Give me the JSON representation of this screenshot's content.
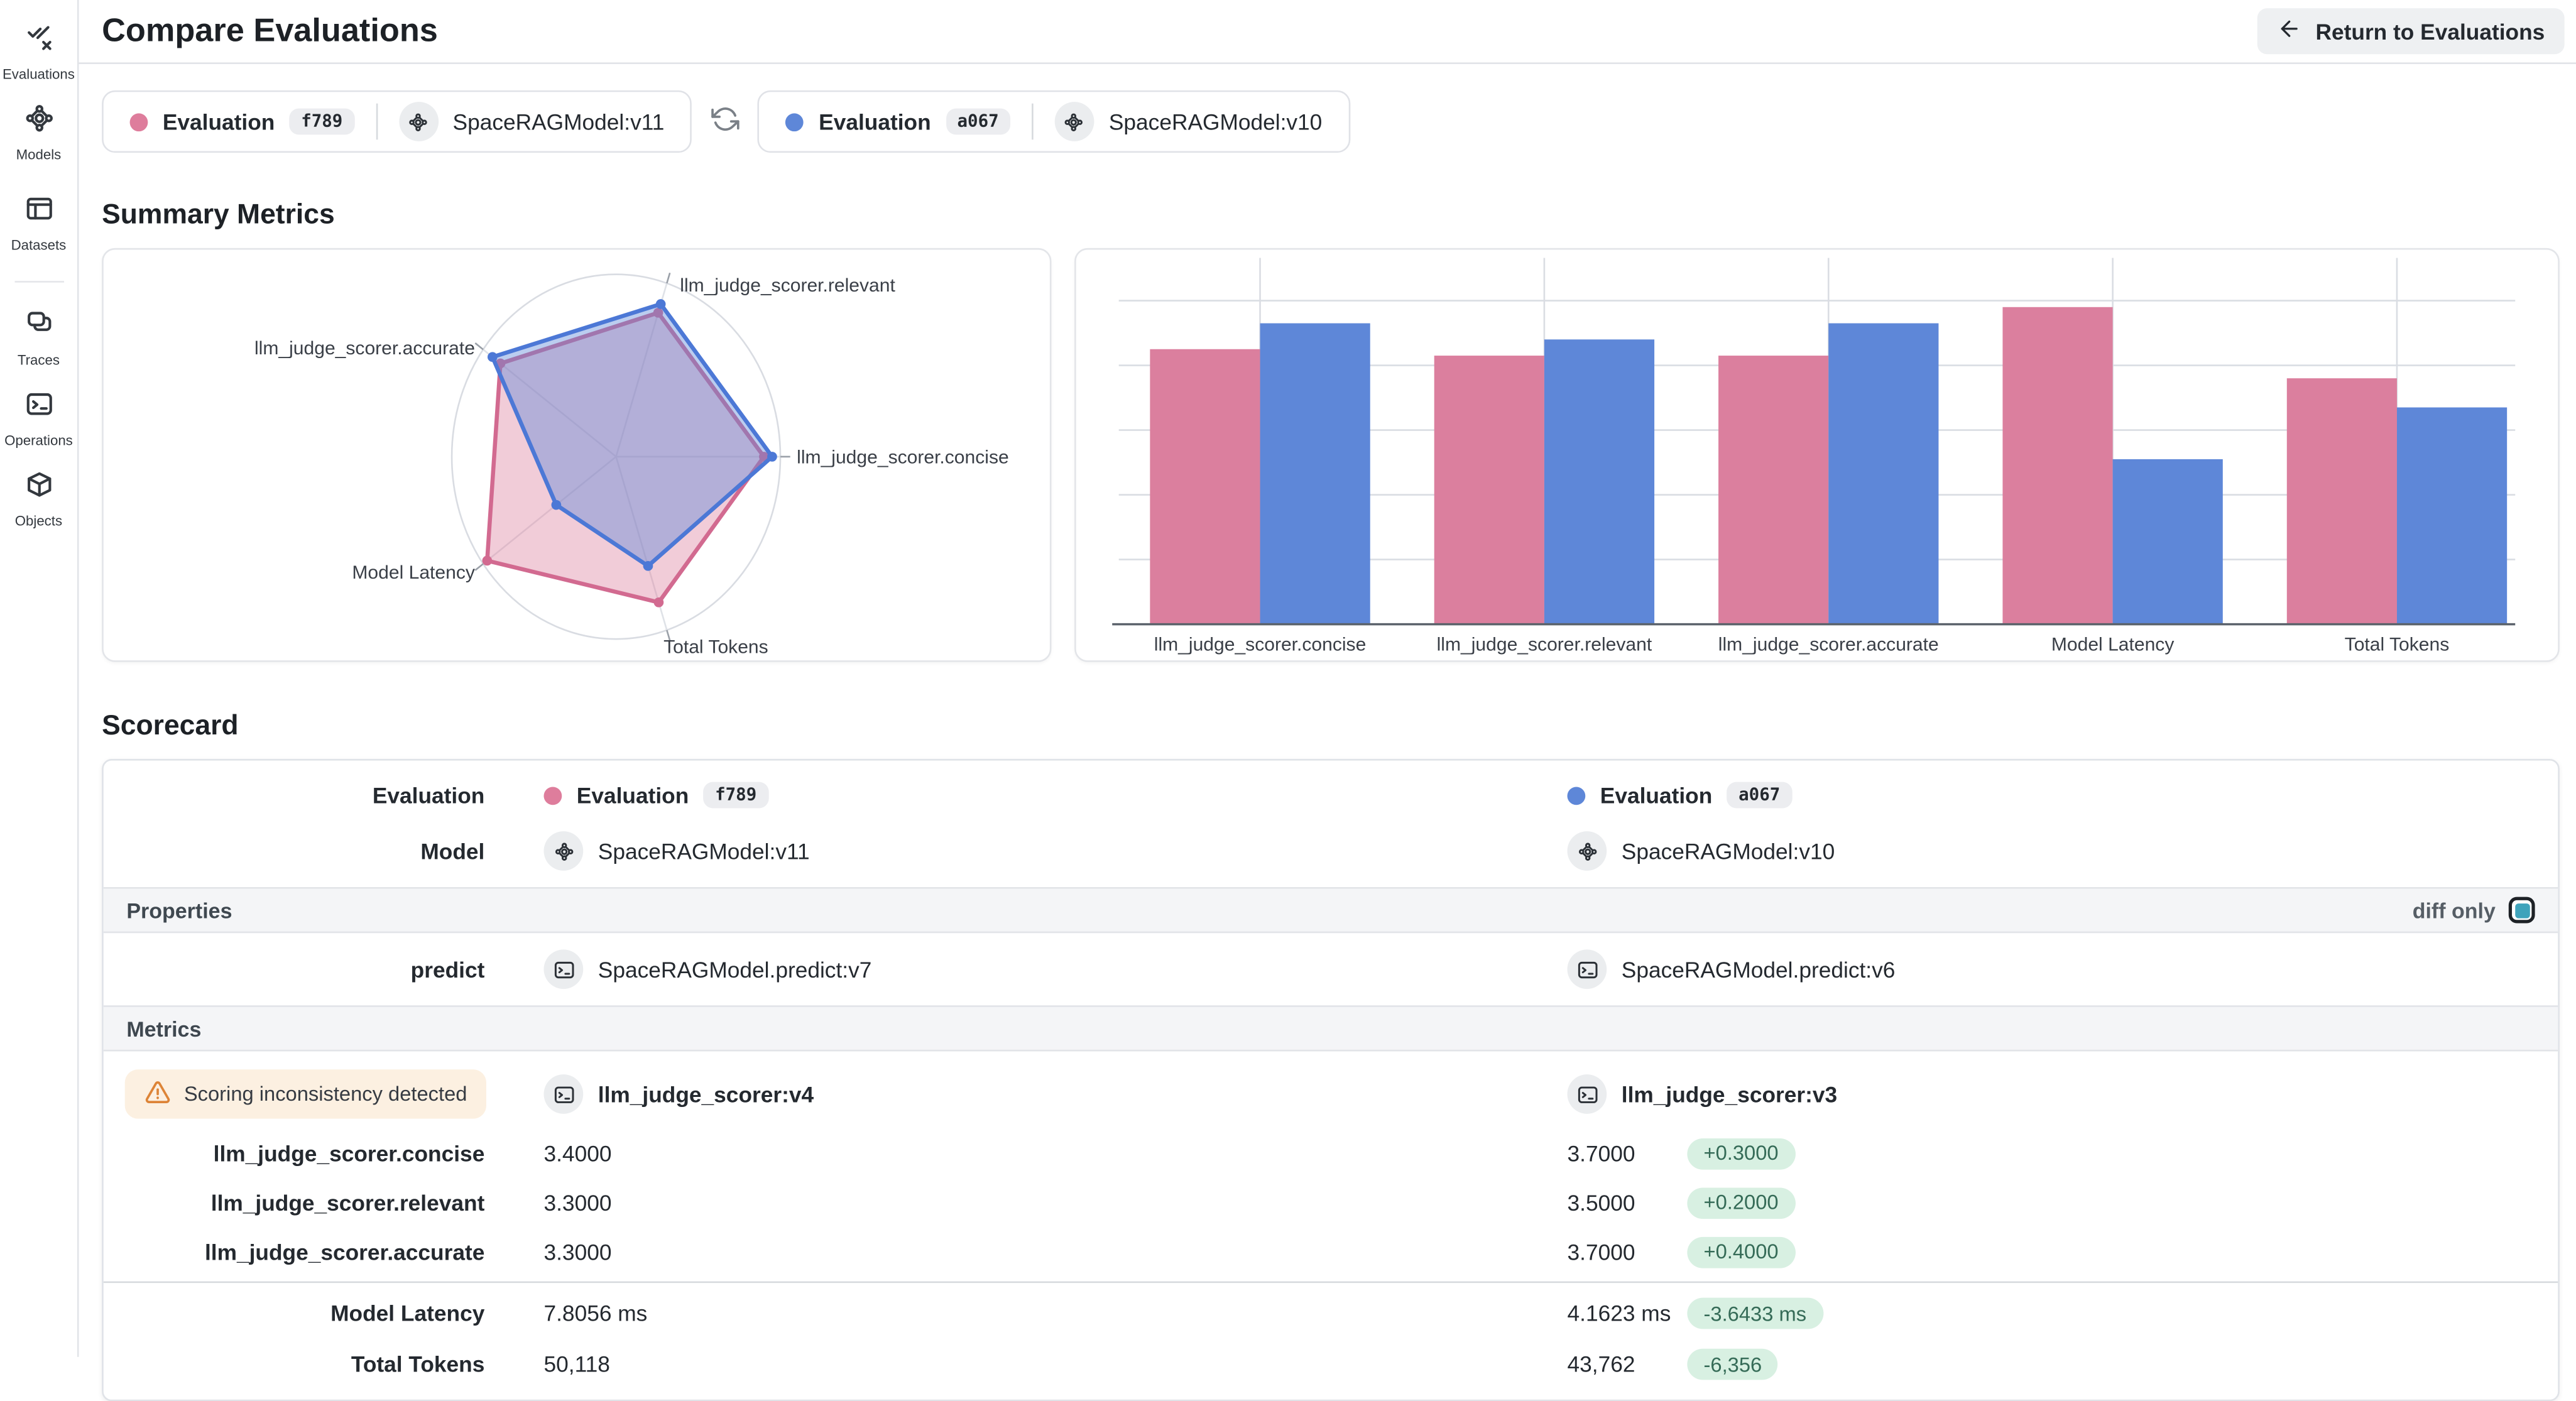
{
  "header": {
    "title": "Compare Evaluations",
    "return_button": "Return to Evaluations"
  },
  "sidebar": {
    "items": [
      {
        "label": "Evaluations",
        "icon": "evaluations-icon"
      },
      {
        "label": "Models",
        "icon": "models-icon"
      },
      {
        "label": "Datasets",
        "icon": "datasets-icon"
      },
      {
        "label": "Traces",
        "icon": "traces-icon"
      },
      {
        "label": "Operations",
        "icon": "operations-icon"
      },
      {
        "label": "Objects",
        "icon": "objects-icon"
      }
    ]
  },
  "comparison_bar": {
    "baseline": {
      "name": "Evaluation",
      "id": "f789",
      "model": "SpaceRAGModel:v11",
      "color": "#de7d9c"
    },
    "candidate": {
      "name": "Evaluation",
      "id": "a067",
      "model": "SpaceRAGModel:v10",
      "color": "#5e87d8"
    }
  },
  "summary": {
    "heading": "Summary Metrics"
  },
  "chart_data": [
    {
      "type": "radar",
      "axes": [
        "llm_judge_scorer.relevant",
        "llm_judge_scorer.concise",
        "Total Tokens",
        "Model Latency",
        "llm_judge_scorer.accurate"
      ],
      "angles_deg": [
        72,
        0,
        -72,
        -144,
        144
      ],
      "series": [
        {
          "name": "Evaluation f789",
          "color": "#db7f9e",
          "values_normalized": [
            0.83,
            0.9,
            0.84,
            0.97,
            0.87
          ],
          "values_raw": [
            3.3,
            3.4,
            50118,
            7.8056,
            3.3
          ]
        },
        {
          "name": "Evaluation a067",
          "color": "#5e87d8",
          "values_normalized": [
            0.88,
            0.95,
            0.63,
            0.45,
            0.93
          ],
          "values_raw": [
            3.5,
            3.7,
            43762,
            4.1623,
            3.7
          ]
        }
      ],
      "grid": "outer ellipse with radial spokes, no tick labels",
      "legend_position": "none"
    },
    {
      "type": "bar",
      "categories": [
        "llm_judge_scorer.concise",
        "llm_judge_scorer.relevant",
        "llm_judge_scorer.accurate",
        "Model Latency",
        "Total Tokens"
      ],
      "series": [
        {
          "name": "Evaluation f789",
          "color": "#db7f9e",
          "values_normalized": [
            0.85,
            0.83,
            0.83,
            0.98,
            0.76
          ],
          "values_raw": [
            3.4,
            3.3,
            3.3,
            7.8056,
            50118
          ]
        },
        {
          "name": "Evaluation a067",
          "color": "#5e87d8",
          "values_normalized": [
            0.93,
            0.88,
            0.93,
            0.51,
            0.67
          ],
          "values_raw": [
            3.7,
            3.5,
            3.7,
            4.1623,
            43762
          ]
        }
      ],
      "ylim": [
        0,
        1.15
      ],
      "grid": true,
      "legend_position": "none"
    }
  ],
  "scorecard": {
    "heading": "Scorecard",
    "evaluation_row_label": "Evaluation",
    "model_row_label": "Model",
    "properties_header": "Properties",
    "diff_only_label": "diff only",
    "diff_only_checked": true,
    "predict_row": {
      "label": "predict",
      "baseline": "SpaceRAGModel.predict:v7",
      "candidate": "SpaceRAGModel.predict:v6"
    },
    "metrics_header": "Metrics",
    "scorer_row": {
      "warning": "Scoring inconsistency detected",
      "baseline": "llm_judge_scorer:v4",
      "candidate": "llm_judge_scorer:v3"
    },
    "metrics": [
      {
        "label": "llm_judge_scorer.concise",
        "baseline": "3.4000",
        "candidate": "3.7000",
        "diff": "+0.3000"
      },
      {
        "label": "llm_judge_scorer.relevant",
        "baseline": "3.3000",
        "candidate": "3.5000",
        "diff": "+0.2000"
      },
      {
        "label": "llm_judge_scorer.accurate",
        "baseline": "3.3000",
        "candidate": "3.7000",
        "diff": "+0.4000"
      }
    ],
    "summary_rows": [
      {
        "label": "Model Latency",
        "baseline": "7.8056 ms",
        "candidate": "4.1623 ms",
        "diff": "-3.6433 ms"
      },
      {
        "label": "Total Tokens",
        "baseline": "50,118",
        "candidate": "43,762",
        "diff": "-6,356"
      }
    ]
  },
  "colors": {
    "baseline_pink": "#db7f9e",
    "candidate_blue": "#5e87d8",
    "diff_badge_bg": "#d8f0e2",
    "diff_badge_text": "#356b57",
    "warning_bg": "#fcf0e1",
    "warning_icon": "#dd8437",
    "checkbox_teal": "#3fa3bb",
    "gridline": "#dadde3"
  }
}
